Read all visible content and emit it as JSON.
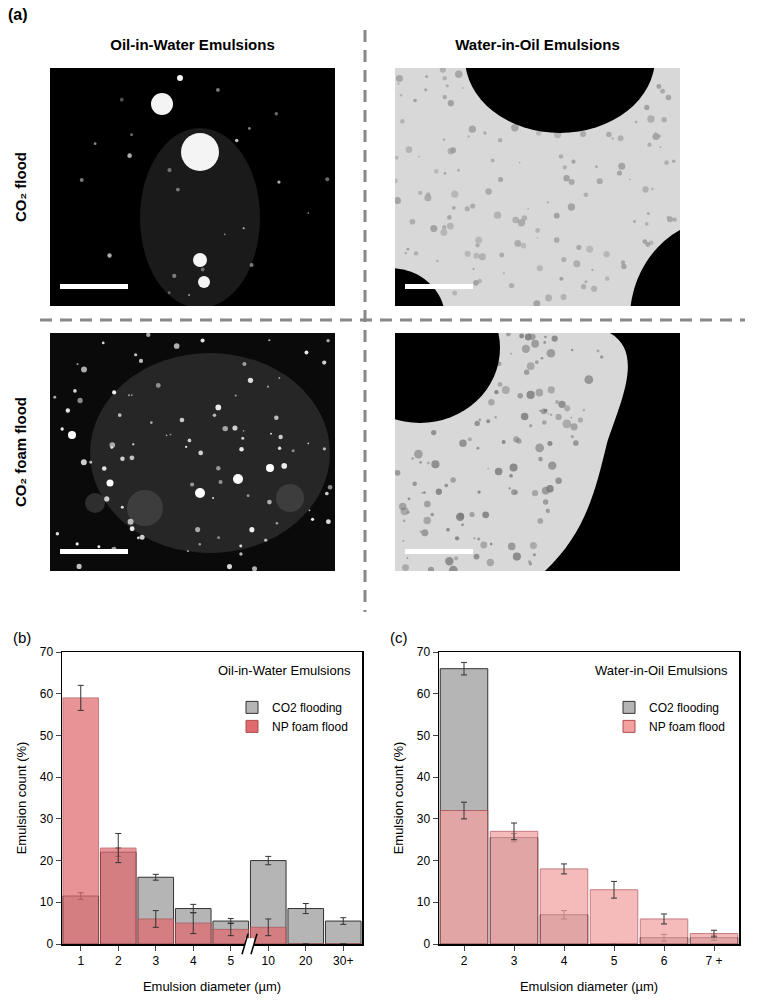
{
  "panel_a": {
    "letter": "(a)",
    "columns": [
      "Oil-in-Water Emulsions",
      "Water-in-Oil Emulsions"
    ],
    "rows": [
      "CO₂ flood",
      "CO₂ foam flood"
    ]
  },
  "chart_data": [
    {
      "letter": "(b)",
      "type": "bar",
      "title": "Oil-in-Water Emulsions",
      "categories": [
        "1",
        "2",
        "3",
        "4",
        "5",
        "10",
        "20",
        "30+"
      ],
      "x_label": "Emulsion diameter (µm)",
      "y_label": "Emulsion count (%)",
      "ylim": [
        0,
        70
      ],
      "yticks": [
        0,
        10,
        20,
        30,
        40,
        50,
        60,
        70
      ],
      "legend": "top right",
      "series": [
        {
          "name": "CO2 flooding",
          "color": "#b5b5b5",
          "values": [
            11.5,
            22,
            16,
            8.5,
            5.5,
            20,
            8.5,
            5.5
          ],
          "errors": [
            0.8,
            1,
            0.7,
            1,
            0.6,
            1,
            1.2,
            0.8
          ]
        },
        {
          "name": "NP foam flood",
          "color": "#e06a6e",
          "values": [
            59,
            23,
            6,
            5,
            3.5,
            4,
            0,
            0
          ],
          "errors": [
            3,
            3.5,
            2,
            2.5,
            1.5,
            2,
            0,
            0
          ]
        }
      ]
    },
    {
      "letter": "(c)",
      "type": "bar",
      "title": "Water-in-Oil Emulsions",
      "categories": [
        "2",
        "3",
        "4",
        "5",
        "6",
        "7 +"
      ],
      "x_label": "Emulsion diameter (µm)",
      "y_label": "Emulsion count (%)",
      "ylim": [
        0,
        70
      ],
      "yticks": [
        0,
        10,
        20,
        30,
        40,
        50,
        60,
        70
      ],
      "legend": "top right",
      "series": [
        {
          "name": "CO2 flooding",
          "color": "#b5b5b5",
          "values": [
            66,
            25.5,
            7,
            0,
            1.5,
            1.5
          ],
          "errors": [
            1.5,
            1,
            1,
            0,
            0.8,
            0.6
          ]
        },
        {
          "name": "NP foam flood",
          "color": "#f2a0a0",
          "values": [
            32,
            27,
            18,
            13,
            6,
            2.5
          ],
          "errors": [
            2,
            2,
            1.2,
            2,
            1.2,
            0.8
          ]
        }
      ]
    }
  ]
}
